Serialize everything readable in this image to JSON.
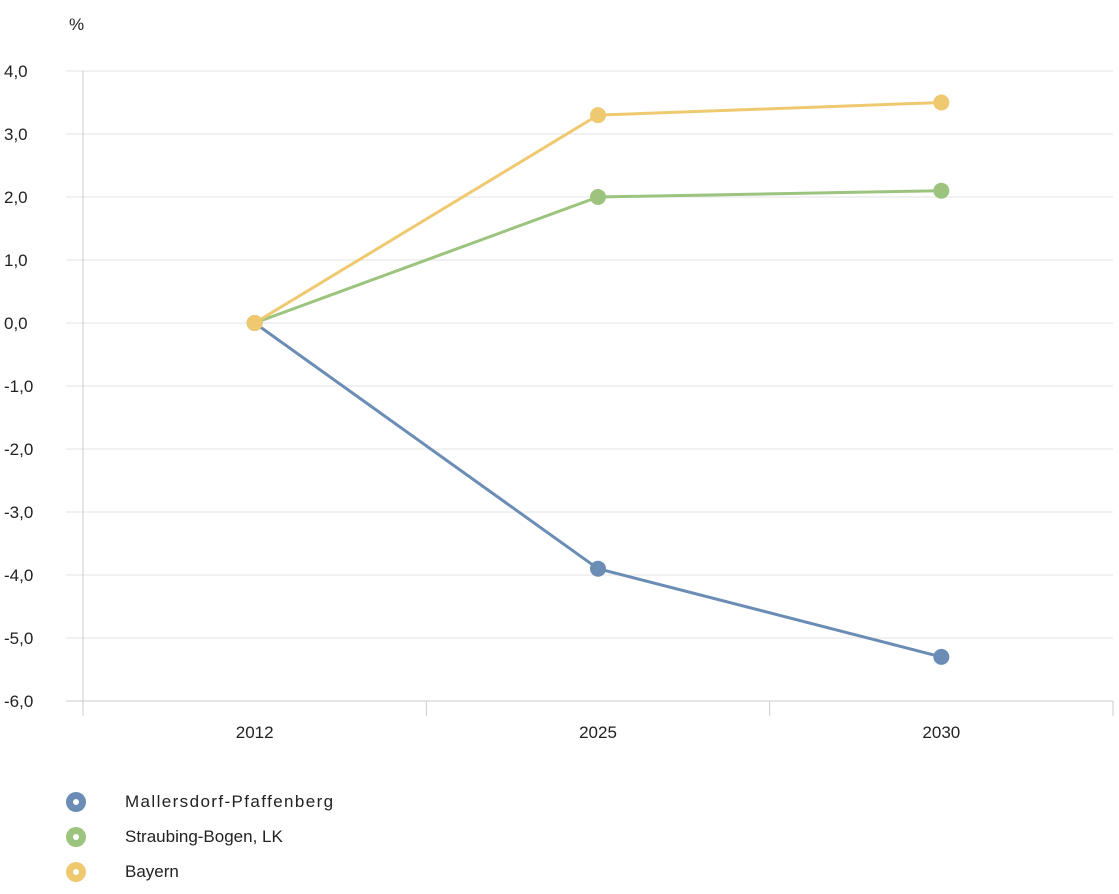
{
  "chart_data": {
    "type": "line",
    "unit_label": "%",
    "categories": [
      "2012",
      "2025",
      "2030"
    ],
    "ylim": [
      -6,
      4
    ],
    "yticks": [
      "4,0",
      "3,0",
      "2,0",
      "1,0",
      "0,0",
      "-1,0",
      "-2,0",
      "-3,0",
      "-4,0",
      "-5,0",
      "-6,0"
    ],
    "grid": true,
    "legend_position": "bottom-left",
    "series": [
      {
        "name": "Mallersdorf-Pfaffenberg",
        "color": "#6b8db5",
        "values": [
          0.0,
          -3.9,
          -5.3
        ]
      },
      {
        "name": "Straubing-Bogen, LK",
        "color": "#9cc47e",
        "values": [
          0.0,
          2.0,
          2.1
        ]
      },
      {
        "name": "Bayern",
        "color": "#efc96f",
        "values": [
          0.0,
          3.3,
          3.5
        ]
      }
    ]
  }
}
